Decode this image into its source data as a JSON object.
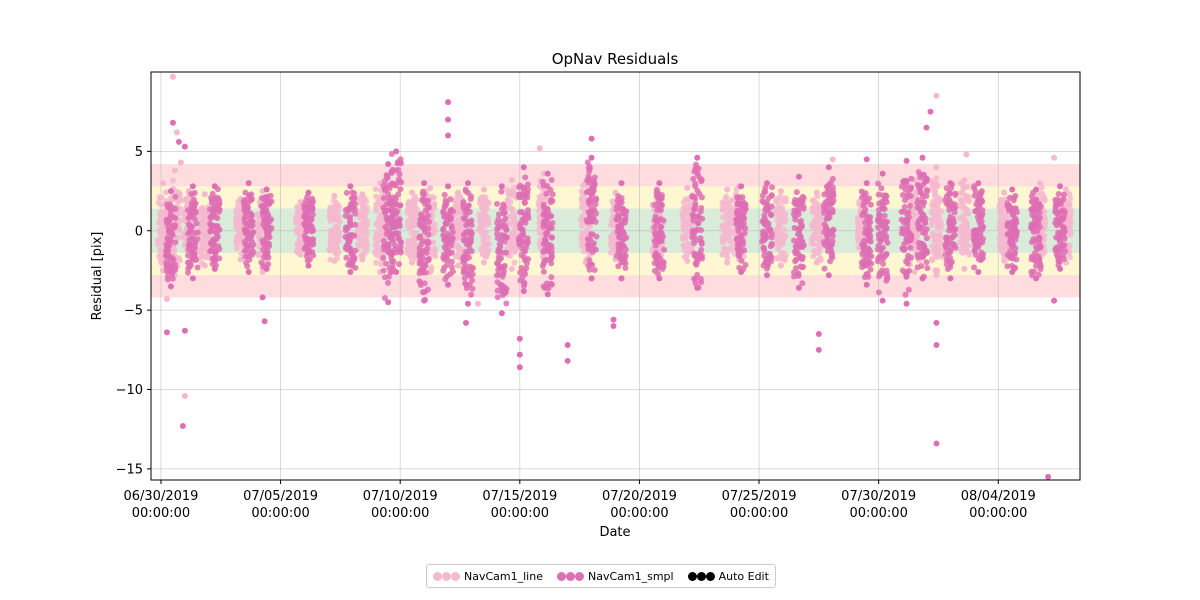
{
  "chart_data": {
    "type": "scatter",
    "title": "OpNav Residuals",
    "xlabel": "Date",
    "ylabel": "Residual [pix]",
    "xlim": [
      "2019-06-29T14:00:00",
      "2019-08-07T10:00:00"
    ],
    "ylim": [
      -15.7,
      10.0
    ],
    "x_ticks": [
      {
        "date": "2019-06-30",
        "line1": "06/30/2019",
        "line2": "00:00:00"
      },
      {
        "date": "2019-07-05",
        "line1": "07/05/2019",
        "line2": "00:00:00"
      },
      {
        "date": "2019-07-10",
        "line1": "07/10/2019",
        "line2": "00:00:00"
      },
      {
        "date": "2019-07-15",
        "line1": "07/15/2019",
        "line2": "00:00:00"
      },
      {
        "date": "2019-07-20",
        "line1": "07/20/2019",
        "line2": "00:00:00"
      },
      {
        "date": "2019-07-25",
        "line1": "07/25/2019",
        "line2": "00:00:00"
      },
      {
        "date": "2019-07-30",
        "line1": "07/30/2019",
        "line2": "00:00:00"
      },
      {
        "date": "2019-08-04",
        "line1": "08/04/2019",
        "line2": "00:00:00"
      }
    ],
    "y_ticks": [
      5,
      0,
      -5,
      -10,
      -15
    ],
    "grid": true,
    "sigma_bands": [
      {
        "low": -4.2,
        "high": 4.2,
        "color": "#ffb3b8"
      },
      {
        "low": -2.8,
        "high": 2.8,
        "color": "#ffffcc"
      },
      {
        "low": -1.4,
        "high": 1.4,
        "color": "#cce8dc"
      }
    ],
    "series": [
      {
        "name": "NavCam1_line",
        "color": "#f4b8cf",
        "passes": [
          {
            "t": "2019-06-30T02:00",
            "lo": -2.5,
            "hi": 3.0
          },
          {
            "t": "2019-06-30T14:00",
            "lo": -2.8,
            "hi": 3.8
          },
          {
            "t": "2019-07-01T04:00",
            "lo": -2.0,
            "hi": 2.5
          },
          {
            "t": "2019-07-01T20:00",
            "lo": -2.2,
            "hi": 2.3
          },
          {
            "t": "2019-07-03T08:00",
            "lo": -1.8,
            "hi": 2.0
          },
          {
            "t": "2019-07-04T06:00",
            "lo": -2.6,
            "hi": 2.5
          },
          {
            "t": "2019-07-05T20:00",
            "lo": -1.5,
            "hi": 1.8
          },
          {
            "t": "2019-07-07T06:00",
            "lo": -1.9,
            "hi": 2.2
          },
          {
            "t": "2019-07-08T10:00",
            "lo": -1.8,
            "hi": 2.3
          },
          {
            "t": "2019-07-09T04:00",
            "lo": -2.6,
            "hi": 3.0
          },
          {
            "t": "2019-07-10T12:00",
            "lo": -2.0,
            "hi": 2.4
          },
          {
            "t": "2019-07-11T06:00",
            "lo": -2.6,
            "hi": 2.7
          },
          {
            "t": "2019-07-12T10:00",
            "lo": -2.2,
            "hi": 2.4
          },
          {
            "t": "2019-07-13T12:00",
            "lo": -2.0,
            "hi": 2.6
          },
          {
            "t": "2019-07-14T16:00",
            "lo": -2.4,
            "hi": 3.2
          },
          {
            "t": "2019-07-16T00:00",
            "lo": -2.0,
            "hi": 3.6
          },
          {
            "t": "2019-07-17T18:00",
            "lo": -2.0,
            "hi": 3.0
          },
          {
            "t": "2019-07-19T00:00",
            "lo": -1.8,
            "hi": 2.4
          },
          {
            "t": "2019-07-20T18:00",
            "lo": -2.0,
            "hi": 2.5
          },
          {
            "t": "2019-07-22T00:00",
            "lo": -1.9,
            "hi": 2.7
          },
          {
            "t": "2019-07-23T16:00",
            "lo": -2.0,
            "hi": 2.6
          },
          {
            "t": "2019-07-24T04:00",
            "lo": -1.8,
            "hi": 2.8
          },
          {
            "t": "2019-07-25T22:00",
            "lo": -2.2,
            "hi": 2.5
          },
          {
            "t": "2019-07-27T10:00",
            "lo": -2.0,
            "hi": 2.4
          },
          {
            "t": "2019-07-29T08:00",
            "lo": -1.6,
            "hi": 2.4
          },
          {
            "t": "2019-07-31T12:00",
            "lo": -2.6,
            "hi": 3.2
          },
          {
            "t": "2019-08-01T10:00",
            "lo": -2.8,
            "hi": 4.0
          },
          {
            "t": "2019-08-02T14:00",
            "lo": -2.4,
            "hi": 3.2
          },
          {
            "t": "2019-08-04T06:00",
            "lo": -1.9,
            "hi": 2.4
          },
          {
            "t": "2019-08-05T18:00",
            "lo": -2.2,
            "hi": 3.0
          },
          {
            "t": "2019-08-06T20:00",
            "lo": -2.0,
            "hi": 2.6
          }
        ],
        "outliers": [
          {
            "t": "2019-06-30T12:00",
            "y": 9.7
          },
          {
            "t": "2019-06-30T16:00",
            "y": 6.2
          },
          {
            "t": "2019-06-30T20:00",
            "y": 4.3
          },
          {
            "t": "2019-07-01T00:00",
            "y": -10.4
          },
          {
            "t": "2019-06-30T06:00",
            "y": -4.3
          },
          {
            "t": "2019-07-15T20:00",
            "y": 5.2
          },
          {
            "t": "2019-07-13T06:00",
            "y": -4.6
          },
          {
            "t": "2019-07-28T02:00",
            "y": 4.5
          },
          {
            "t": "2019-08-01T10:00",
            "y": 8.5
          },
          {
            "t": "2019-08-02T16:00",
            "y": 4.8
          },
          {
            "t": "2019-08-06T08:00",
            "y": 4.6
          }
        ]
      },
      {
        "name": "NavCam1_smpl",
        "color": "#de6fb4",
        "passes": [
          {
            "t": "2019-06-30T10:00",
            "lo": -3.5,
            "hi": 2.5
          },
          {
            "t": "2019-07-01T08:00",
            "lo": -3.0,
            "hi": 2.8
          },
          {
            "t": "2019-07-02T06:00",
            "lo": -2.4,
            "hi": 2.8
          },
          {
            "t": "2019-07-03T16:00",
            "lo": -2.6,
            "hi": 3.0
          },
          {
            "t": "2019-07-04T10:00",
            "lo": -2.4,
            "hi": 2.6
          },
          {
            "t": "2019-07-06T04:00",
            "lo": -2.2,
            "hi": 2.4
          },
          {
            "t": "2019-07-07T22:00",
            "lo": -2.6,
            "hi": 2.8
          },
          {
            "t": "2019-07-09T12:00",
            "lo": -4.5,
            "hi": 4.2
          },
          {
            "t": "2019-07-09T20:00",
            "lo": -2.6,
            "hi": 5.0
          },
          {
            "t": "2019-07-11T00:00",
            "lo": -4.4,
            "hi": 3.0
          },
          {
            "t": "2019-07-12T00:00",
            "lo": -3.4,
            "hi": 2.8
          },
          {
            "t": "2019-07-12T20:00",
            "lo": -4.6,
            "hi": 3.0
          },
          {
            "t": "2019-07-14T06:00",
            "lo": -5.2,
            "hi": 2.8
          },
          {
            "t": "2019-07-15T04:00",
            "lo": -3.8,
            "hi": 4.0
          },
          {
            "t": "2019-07-16T04:00",
            "lo": -4.0,
            "hi": 3.6
          },
          {
            "t": "2019-07-18T00:00",
            "lo": -3.0,
            "hi": 4.6
          },
          {
            "t": "2019-07-19T06:00",
            "lo": -3.0,
            "hi": 3.0
          },
          {
            "t": "2019-07-20T20:00",
            "lo": -3.0,
            "hi": 3.0
          },
          {
            "t": "2019-07-22T10:00",
            "lo": -3.6,
            "hi": 4.6
          },
          {
            "t": "2019-07-24T06:00",
            "lo": -2.6,
            "hi": 2.8
          },
          {
            "t": "2019-07-25T08:00",
            "lo": -2.8,
            "hi": 3.0
          },
          {
            "t": "2019-07-26T16:00",
            "lo": -3.6,
            "hi": 3.4
          },
          {
            "t": "2019-07-27T22:00",
            "lo": -2.8,
            "hi": 4.0
          },
          {
            "t": "2019-07-29T12:00",
            "lo": -3.4,
            "hi": 3.0
          },
          {
            "t": "2019-07-30T04:00",
            "lo": -4.4,
            "hi": 3.6
          },
          {
            "t": "2019-07-31T04:00",
            "lo": -4.6,
            "hi": 4.4
          },
          {
            "t": "2019-07-31T20:00",
            "lo": -3.0,
            "hi": 4.6
          },
          {
            "t": "2019-08-02T00:00",
            "lo": -3.0,
            "hi": 3.0
          },
          {
            "t": "2019-08-03T04:00",
            "lo": -2.6,
            "hi": 3.0
          },
          {
            "t": "2019-08-04T14:00",
            "lo": -2.6,
            "hi": 2.6
          },
          {
            "t": "2019-08-05T14:00",
            "lo": -3.0,
            "hi": 2.6
          },
          {
            "t": "2019-08-06T14:00",
            "lo": -2.4,
            "hi": 2.8
          }
        ],
        "outliers": [
          {
            "t": "2019-06-30T06:00",
            "y": -6.4
          },
          {
            "t": "2019-06-30T18:00",
            "y": 5.6
          },
          {
            "t": "2019-06-30T12:00",
            "y": 6.8
          },
          {
            "t": "2019-06-30T22:00",
            "y": -12.3
          },
          {
            "t": "2019-07-01T00:00",
            "y": 5.3
          },
          {
            "t": "2019-07-01T00:00",
            "y": -6.3
          },
          {
            "t": "2019-07-04T06:00",
            "y": -4.2
          },
          {
            "t": "2019-07-04T08:00",
            "y": -5.7
          },
          {
            "t": "2019-07-12T00:00",
            "y": 8.1
          },
          {
            "t": "2019-07-12T00:00",
            "y": 6.0
          },
          {
            "t": "2019-07-12T00:00",
            "y": 7.0
          },
          {
            "t": "2019-07-12T18:00",
            "y": -5.8
          },
          {
            "t": "2019-07-15T00:00",
            "y": -6.8
          },
          {
            "t": "2019-07-15T00:00",
            "y": -8.6
          },
          {
            "t": "2019-07-15T00:00",
            "y": -7.8
          },
          {
            "t": "2019-07-17T00:00",
            "y": -8.2
          },
          {
            "t": "2019-07-17T00:00",
            "y": -7.2
          },
          {
            "t": "2019-07-18T00:00",
            "y": 5.8
          },
          {
            "t": "2019-07-18T22:00",
            "y": -5.6
          },
          {
            "t": "2019-07-18T22:00",
            "y": -6.0
          },
          {
            "t": "2019-07-27T12:00",
            "y": -7.5
          },
          {
            "t": "2019-07-27T12:00",
            "y": -6.5
          },
          {
            "t": "2019-07-29T12:00",
            "y": 4.5
          },
          {
            "t": "2019-08-01T00:00",
            "y": 6.5
          },
          {
            "t": "2019-08-01T04:00",
            "y": 7.5
          },
          {
            "t": "2019-08-01T10:00",
            "y": -13.4
          },
          {
            "t": "2019-08-01T10:00",
            "y": -7.2
          },
          {
            "t": "2019-08-01T10:00",
            "y": -5.8
          },
          {
            "t": "2019-08-06T02:00",
            "y": -15.5
          },
          {
            "t": "2019-08-06T08:00",
            "y": -4.4
          }
        ]
      }
    ],
    "legend": {
      "placement": "bottom-center",
      "entries": [
        {
          "label": "NavCam1_line",
          "color": "#f4b8cf"
        },
        {
          "label": "NavCam1_smpl",
          "color": "#de6fb4"
        },
        {
          "label": "Auto Edit",
          "color": "#000000"
        }
      ]
    }
  }
}
